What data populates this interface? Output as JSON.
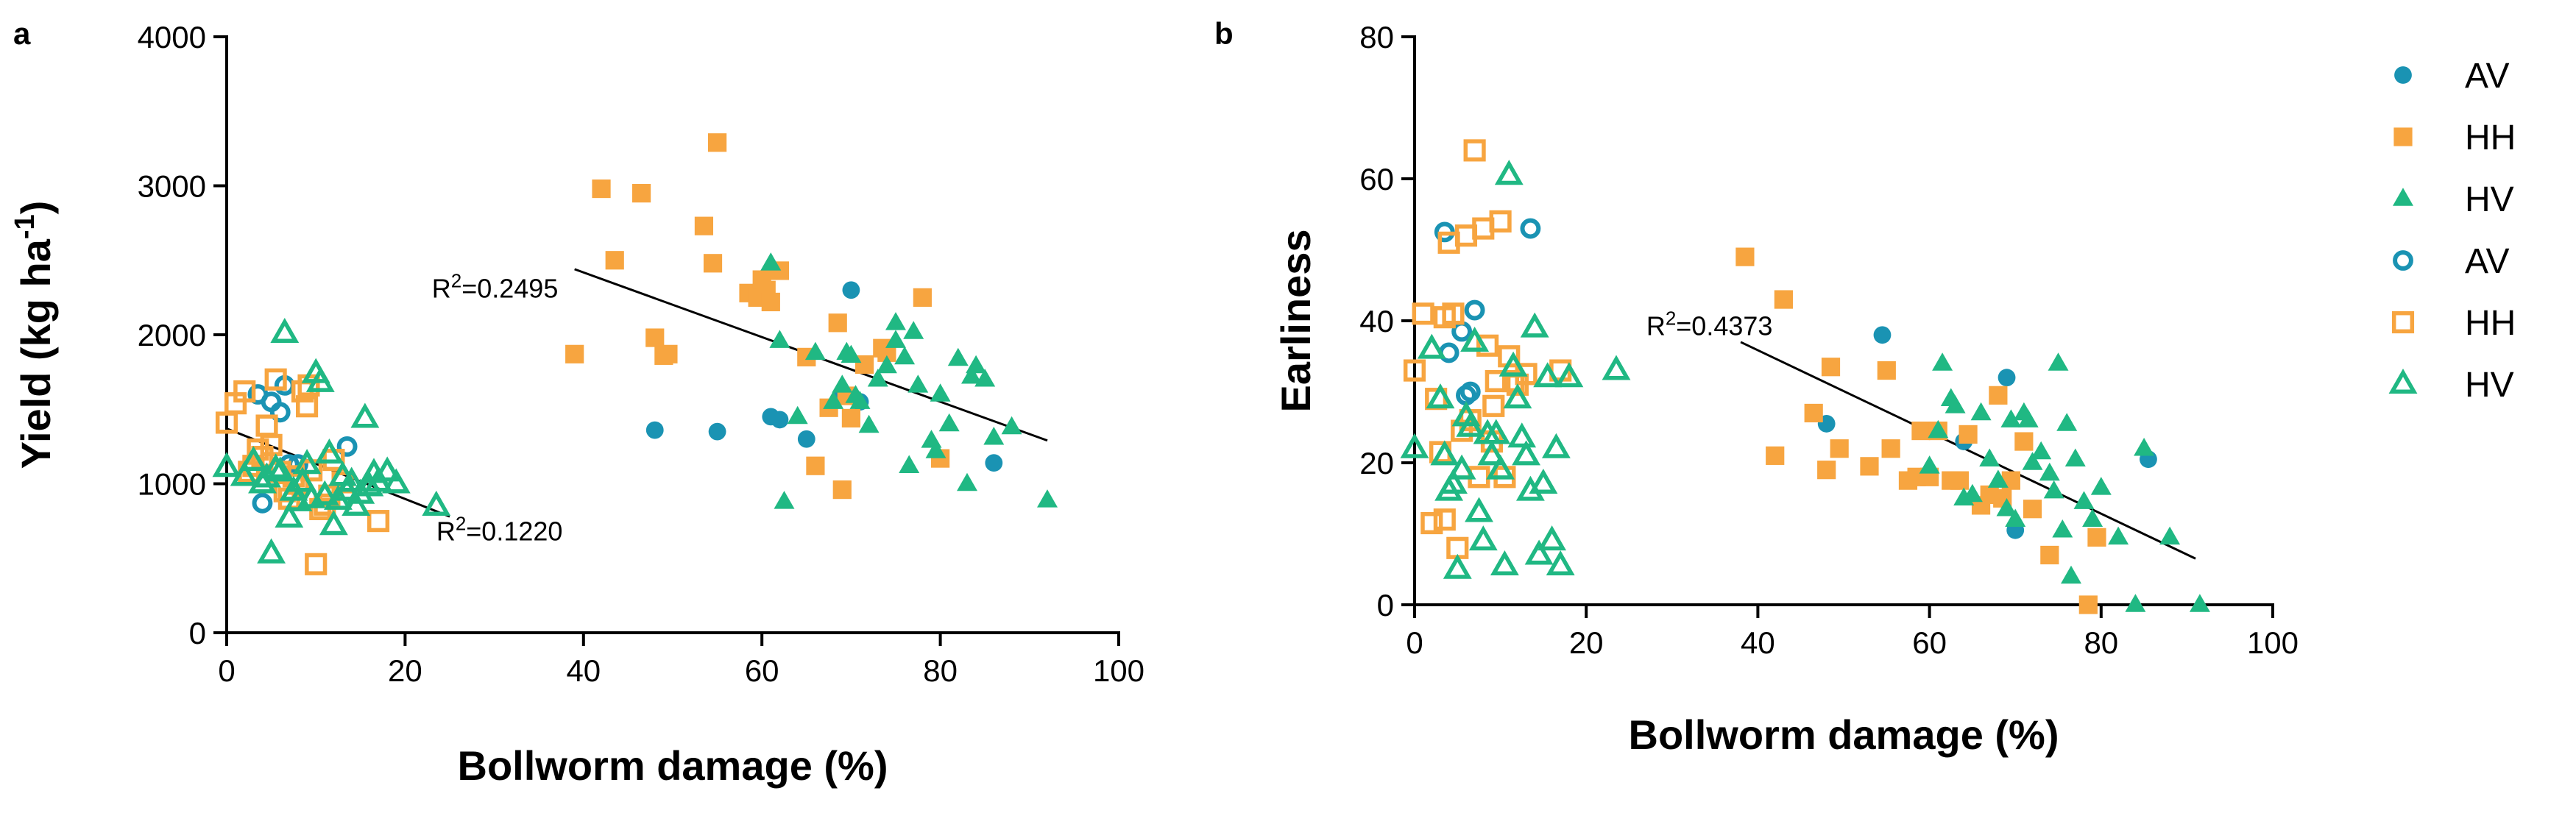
{
  "colors": {
    "AV": "#1a93b3",
    "HH": "#f7a540",
    "HV": "#20b883"
  },
  "legend": [
    {
      "label": "AV",
      "series": "AV",
      "filled": true,
      "shape": "circle"
    },
    {
      "label": "HH",
      "series": "HH",
      "filled": true,
      "shape": "square"
    },
    {
      "label": "HV",
      "series": "HV",
      "filled": true,
      "shape": "triangle"
    },
    {
      "label": "AV",
      "series": "AV",
      "filled": false,
      "shape": "circle"
    },
    {
      "label": "HH",
      "series": "HH",
      "filled": false,
      "shape": "square"
    },
    {
      "label": "HV",
      "series": "HV",
      "filled": false,
      "shape": "triangle"
    }
  ],
  "chart_data": [
    {
      "panel_label": "a",
      "type": "scatter",
      "xlabel": "Bollworm damage (%)",
      "ylabel_main": "Yield (kg ha",
      "ylabel_sup": "-1",
      "ylabel_end": ")",
      "xlim": [
        0,
        100
      ],
      "ylim": [
        0,
        4000
      ],
      "xticks": [
        0,
        20,
        40,
        60,
        80,
        100
      ],
      "yticks": [
        0,
        1000,
        2000,
        3000,
        4000
      ],
      "annotations": [
        {
          "pre": "R",
          "sup": "2",
          "post": "=0.2495",
          "x": 23,
          "y": 2250
        },
        {
          "pre": "R",
          "sup": "2",
          "post": "=0.1220",
          "x": 23.5,
          "y": 620
        }
      ],
      "trendlines": [
        {
          "x": [
            39,
            92
          ],
          "y": [
            2440,
            1290
          ]
        },
        {
          "x": [
            0,
            25
          ],
          "y": [
            1370,
            780
          ]
        }
      ],
      "series": [
        {
          "name": "AV",
          "shape": "circle",
          "filled": true,
          "x": [
            48,
            55,
            61,
            62,
            65,
            69,
            70,
            71,
            86
          ],
          "y": [
            1360,
            1350,
            1450,
            1430,
            1300,
            1590,
            2300,
            1550,
            1140
          ]
        },
        {
          "name": "HH",
          "shape": "square",
          "filled": true,
          "x": [
            39,
            42,
            43.5,
            46.5,
            48,
            49,
            49.5,
            53.5,
            54.5,
            55,
            58.5,
            59.5,
            60,
            60.5,
            61,
            62,
            65,
            66,
            67.5,
            68.5,
            69,
            69.5,
            70,
            71.5,
            73.5,
            74,
            78,
            80
          ],
          "y": [
            1870,
            2980,
            2500,
            2950,
            1980,
            1860,
            1870,
            2730,
            2480,
            3290,
            2280,
            2250,
            2370,
            2300,
            2220,
            2430,
            1850,
            1120,
            1510,
            2080,
            960,
            1590,
            1440,
            1800,
            1910,
            1880,
            2250,
            1170
          ]
        },
        {
          "name": "HV",
          "shape": "triangle",
          "filled": true,
          "x": [
            61,
            62,
            62.5,
            64,
            66,
            68,
            69,
            69.5,
            70,
            70.5,
            71,
            72,
            73,
            74,
            75,
            76,
            76.5,
            77,
            77.5,
            79,
            80,
            81,
            82,
            83,
            84,
            85,
            86,
            88,
            92,
            75,
            79.5,
            83.5
          ],
          "y": [
            2480,
            1960,
            880,
            1450,
            1880,
            1550,
            1660,
            1880,
            1860,
            1590,
            1550,
            1390,
            1700,
            1790,
            2080,
            1850,
            1120,
            2020,
            1660,
            1290,
            1600,
            1400,
            1840,
            1000,
            1790,
            1700,
            1310,
            1380,
            890,
            1960,
            1220,
            1720
          ]
        },
        {
          "name": "AV",
          "shape": "circle",
          "filled": false,
          "x": [
            3.5,
            4,
            5,
            6,
            6.5,
            7,
            8,
            13.5
          ],
          "y": [
            1600,
            870,
            1550,
            1480,
            1660,
            1130,
            1130,
            1250
          ]
        },
        {
          "name": "HH",
          "shape": "square",
          "filled": false,
          "x": [
            0,
            1,
            2,
            2.5,
            3,
            4,
            4.5,
            5,
            5.5,
            6,
            6.5,
            7,
            7.5,
            8,
            8.5,
            9,
            9.5,
            10,
            10.5,
            11,
            11.5,
            12,
            13,
            17,
            9.2,
            3.5
          ],
          "y": [
            1410,
            1540,
            1620,
            1080,
            1120,
            1180,
            1390,
            1260,
            1700,
            1080,
            950,
            900,
            1050,
            1000,
            1620,
            1520,
            1090,
            460,
            830,
            860,
            920,
            1160,
            1010,
            750,
            1660,
            1230
          ]
        },
        {
          "name": "HV",
          "shape": "triangle",
          "filled": false,
          "x": [
            0,
            2,
            3,
            4,
            4.5,
            5,
            5.5,
            6,
            6.5,
            7,
            7.5,
            8,
            8.5,
            9,
            9.5,
            10,
            10.5,
            11,
            11.5,
            12,
            12.5,
            13,
            13.5,
            14,
            14.5,
            15,
            15.5,
            16,
            16.5,
            17,
            18,
            19,
            23.5
          ],
          "y": [
            1110,
            1050,
            1150,
            1000,
            1040,
            530,
            1100,
            1080,
            2010,
            770,
            950,
            880,
            1010,
            1130,
            900,
            1740,
            1680,
            920,
            1200,
            720,
            890,
            1050,
            950,
            1010,
            850,
            930,
            1440,
            980,
            1070,
            1010,
            1080,
            1000,
            850
          ]
        }
      ]
    },
    {
      "panel_label": "b",
      "type": "scatter",
      "xlabel": "Bollworm damage (%)",
      "ylabel": "Earliness",
      "xlim": [
        0,
        100
      ],
      "ylim": [
        0,
        80
      ],
      "xticks": [
        0,
        20,
        40,
        60,
        80,
        100
      ],
      "yticks": [
        0,
        20,
        40,
        60,
        80
      ],
      "annotations": [
        {
          "pre": "R",
          "sup": "2",
          "post": "=0.4373",
          "x": 27,
          "y": 38
        }
      ],
      "trendlines": [
        {
          "x": [
            38,
            91
          ],
          "y": [
            37,
            6.5
          ]
        }
      ],
      "series": [
        {
          "name": "AV",
          "shape": "circle",
          "filled": true,
          "x": [
            48,
            54.5,
            61,
            64,
            69,
            70,
            85.5
          ],
          "y": [
            25.5,
            38,
            24.5,
            23,
            32,
            10.5,
            20.5
          ]
        },
        {
          "name": "HH",
          "shape": "square",
          "filled": true,
          "x": [
            38.5,
            42,
            43,
            46.5,
            48,
            48.5,
            49.5,
            53,
            55,
            55.5,
            57.5,
            58.5,
            59,
            60,
            61,
            62.5,
            63.5,
            64.5,
            66,
            67,
            68,
            68.5,
            69.5,
            71,
            72,
            74,
            78.5,
            79.5
          ],
          "y": [
            49,
            21,
            43,
            27,
            19,
            33.5,
            22,
            19.5,
            33,
            22,
            17.5,
            18,
            24.5,
            18,
            24.5,
            17.5,
            17.5,
            24,
            14,
            15.5,
            29.5,
            15,
            17.5,
            23,
            13.5,
            7,
            0,
            9.5
          ]
        },
        {
          "name": "HV",
          "shape": "triangle",
          "filled": true,
          "x": [
            60,
            61,
            61.5,
            62.5,
            63,
            64,
            65,
            66,
            67,
            68,
            69,
            69.5,
            70,
            71,
            71.5,
            72,
            73,
            74,
            74.5,
            75,
            75.5,
            76,
            76.5,
            77,
            78,
            79,
            80,
            82,
            84,
            85,
            88,
            91.5
          ],
          "y": [
            19.5,
            24.5,
            34,
            29,
            28,
            15,
            15.5,
            27,
            20.5,
            17.5,
            13.5,
            26,
            12,
            27,
            26,
            20,
            21.5,
            18.5,
            16,
            34,
            10.5,
            25.5,
            4,
            20.5,
            14.5,
            12,
            16.5,
            9.5,
            0,
            22,
            9.5,
            0
          ]
        },
        {
          "name": "AV",
          "shape": "circle",
          "filled": false,
          "x": [
            3.5,
            4,
            5.5,
            6,
            6.5,
            7,
            13.5
          ],
          "y": [
            52.5,
            35.5,
            38.5,
            29.5,
            30,
            41.5,
            53
          ]
        },
        {
          "name": "HH",
          "shape": "square",
          "filled": false,
          "x": [
            0,
            1,
            2,
            2.5,
            3,
            3.5,
            4,
            4.5,
            5,
            5.5,
            6,
            6.5,
            7,
            7.5,
            8,
            8.5,
            9,
            9.5,
            10,
            10.5,
            11,
            11.5,
            12,
            13,
            17,
            9.2,
            3.5
          ],
          "y": [
            33,
            41,
            11.5,
            29,
            21.5,
            12,
            51,
            41,
            8,
            24.5,
            52,
            26,
            64,
            18,
            53,
            36.5,
            23,
            31.5,
            54,
            18,
            35,
            31.5,
            31,
            32.5,
            33,
            28,
            40.5
          ]
        },
        {
          "name": "HV",
          "shape": "triangle",
          "filled": false,
          "x": [
            0,
            2,
            3,
            3.5,
            4,
            4.5,
            5,
            5.5,
            6,
            6.5,
            7,
            7.5,
            8,
            8.5,
            9,
            9.5,
            10,
            10.5,
            11,
            11.5,
            12,
            12.5,
            13,
            13.5,
            14,
            14.5,
            15,
            15.5,
            16,
            16.5,
            17,
            18,
            23.5
          ],
          "y": [
            22,
            36,
            29,
            21,
            16,
            17,
            5,
            19,
            26.5,
            25,
            37,
            13,
            9,
            24,
            21,
            24,
            19,
            5.5,
            60.5,
            33.5,
            29,
            23.5,
            21,
            16,
            39,
            7,
            17,
            32,
            9,
            22,
            5.5,
            32,
            33
          ]
        }
      ]
    }
  ]
}
